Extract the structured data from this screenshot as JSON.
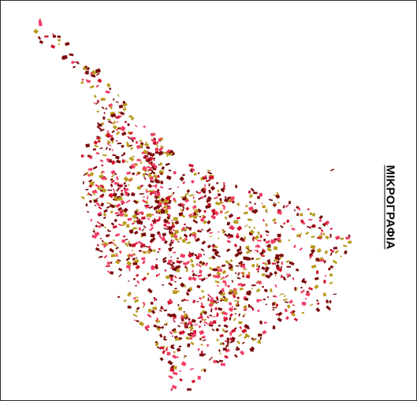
{
  "map": {
    "title": "ΜΙΚΡΟΓΡΑΦΙΑ",
    "colors": {
      "dark_red": "#7a0a0a",
      "crimson": "#d0102a",
      "pink": "#f03c64",
      "olive_gold": "#b89a1c",
      "frame": "#2b2b2b",
      "background": "#ffffff"
    }
  }
}
